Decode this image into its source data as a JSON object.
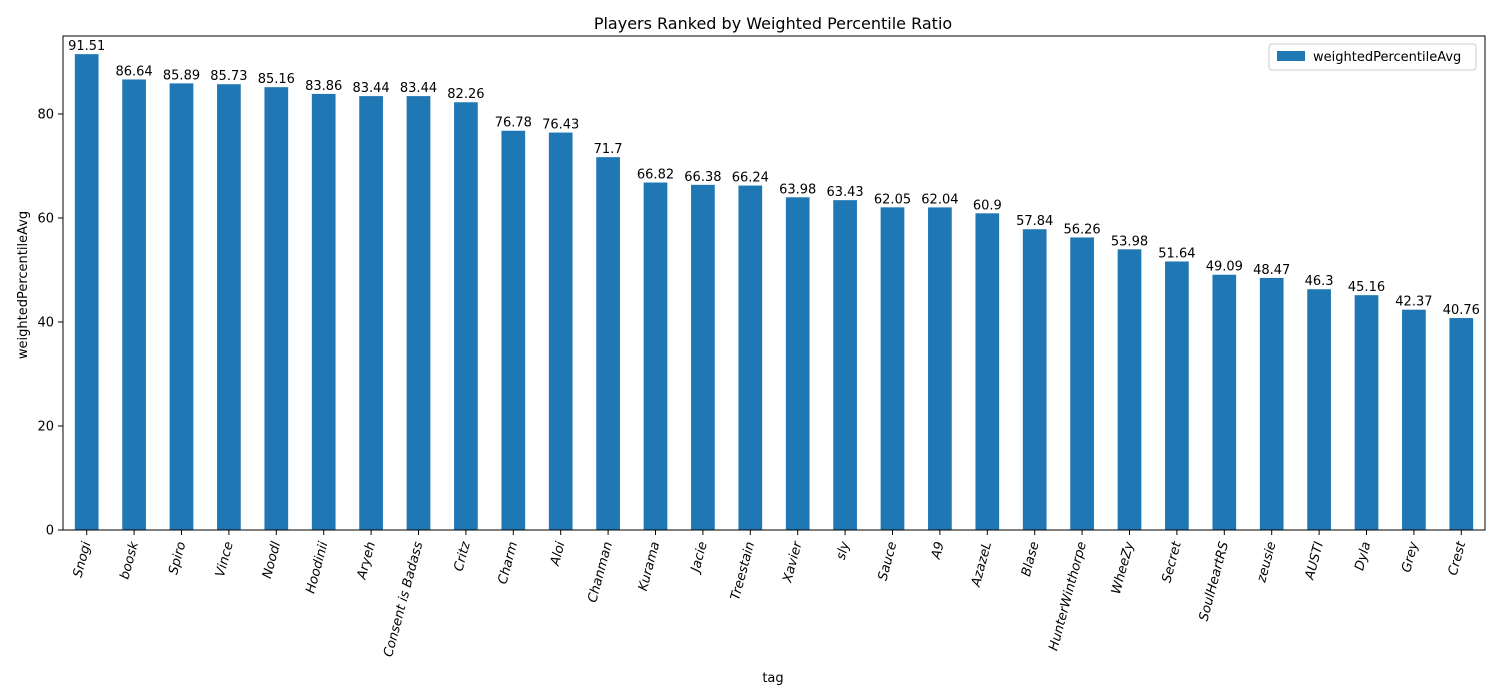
{
  "chart_data": {
    "type": "bar",
    "title": "Players Ranked by Weighted Percentile Ratio",
    "xlabel": "tag",
    "ylabel": "weightedPercentileAvg",
    "ylim": [
      0,
      95
    ],
    "yticks": [
      0,
      20,
      40,
      60,
      80
    ],
    "grid": false,
    "legend_placement": "top-right",
    "bar_color": "#1f77b4",
    "categories": [
      "Snogi",
      "boosk",
      "Spiro",
      "Vince",
      "Noodl",
      "Hoodinii",
      "Aryeh",
      "Consent is Badass",
      "Critz",
      "Charm",
      "Aloi",
      "Chanman",
      "Kurama",
      "Jacie",
      "Treestain",
      "Xavier",
      "sly",
      "Sauce",
      "A9",
      "AzazeL",
      "Blase",
      "HunterWinthorpe",
      "WheeZy",
      "Secret",
      "SoulHeartRS",
      "zeusie",
      "AUSTI",
      "Dyla",
      "Grey",
      "Crest"
    ],
    "series": [
      {
        "name": "weightedPercentileAvg",
        "values": [
          91.51,
          86.64,
          85.89,
          85.73,
          85.16,
          83.86,
          83.44,
          83.44,
          82.26,
          76.78,
          76.43,
          71.7,
          66.82,
          66.38,
          66.24,
          63.98,
          63.43,
          62.05,
          62.04,
          60.9,
          57.84,
          56.26,
          53.98,
          51.64,
          49.09,
          48.47,
          46.3,
          45.16,
          42.37,
          40.76
        ],
        "labels": [
          "91.51",
          "86.64",
          "85.89",
          "85.73",
          "85.16",
          "83.86",
          "83.44",
          "83.44",
          "82.26",
          "76.78",
          "76.43",
          "71.7",
          "66.82",
          "66.38",
          "66.24",
          "63.98",
          "63.43",
          "62.05",
          "62.04",
          "60.9",
          "57.84",
          "56.26",
          "53.98",
          "51.64",
          "49.09",
          "48.47",
          "46.3",
          "45.16",
          "42.37",
          "40.76"
        ]
      }
    ]
  }
}
